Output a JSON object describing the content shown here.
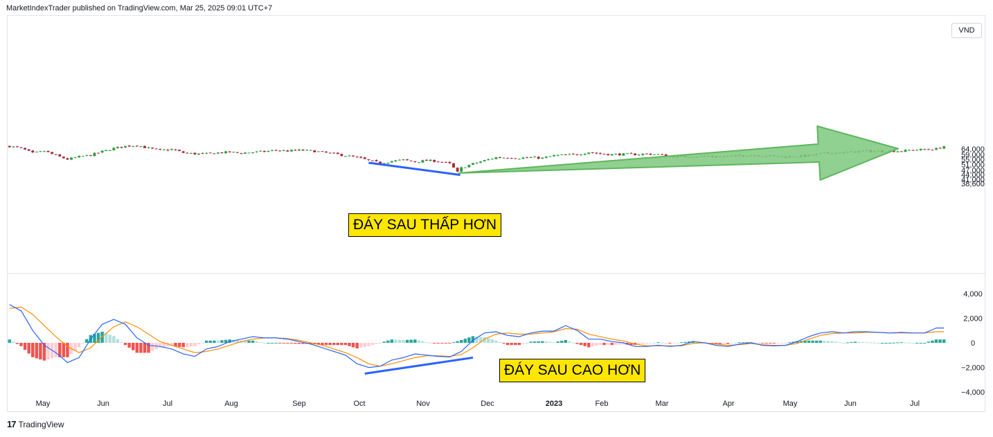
{
  "header": {
    "publisher_line": "MarketIndexTrader published on TradingView.com, Mar 25, 2025 09:01 UTC+7"
  },
  "currency_badge": "VND",
  "footer": {
    "logo": "17",
    "brand": "TradingView"
  },
  "annotations": {
    "price_label": "ĐÁY SAU THẤP HƠN",
    "macd_label": "ĐÁY SAU CAO HƠN"
  },
  "colors": {
    "up": "#26a69a",
    "down": "#ef5350",
    "candle_up": "#2e9e3e",
    "candle_down": "#a52a3a",
    "macd_line": "#2962ff",
    "signal_line": "#ff8c00",
    "hist_up_strong": "#26a69a",
    "hist_up_weak": "#b2dfdb",
    "hist_down_strong": "#ef5350",
    "hist_down_weak": "#ffcdd2",
    "divergence_line": "#2962ff",
    "arrow_fill": "#7dc87d"
  },
  "chart_data": [
    {
      "type": "candlestick",
      "title": "",
      "y_ticks": [
        "38,600",
        "41,000",
        "44,000",
        "47,000",
        "51,000",
        "55,000",
        "59,000",
        "64,000"
      ],
      "ylim": [
        37000,
        70000
      ],
      "y_scale": "log",
      "x_ticks": [
        "May",
        "Jun",
        "Jul",
        "Aug",
        "Sep",
        "Oct",
        "Nov",
        "Dec",
        "2023",
        "Feb",
        "Mar",
        "Apr",
        "May",
        "Jun",
        "Jul"
      ],
      "close_path": [
        [
          0,
          66500
        ],
        [
          3,
          64500
        ],
        [
          6,
          60000
        ],
        [
          9,
          62000
        ],
        [
          12,
          58000
        ],
        [
          15,
          55000
        ],
        [
          18,
          57000
        ],
        [
          21,
          58500
        ],
        [
          24,
          61500
        ],
        [
          27,
          64500
        ],
        [
          30,
          66500
        ],
        [
          33,
          67500
        ],
        [
          36,
          64500
        ],
        [
          39,
          62500
        ],
        [
          42,
          63500
        ],
        [
          45,
          60500
        ],
        [
          48,
          59500
        ],
        [
          51,
          59500
        ],
        [
          54,
          60500
        ],
        [
          57,
          61000
        ],
        [
          60,
          60200
        ],
        [
          63,
          61000
        ],
        [
          66,
          61500
        ],
        [
          69,
          62800
        ],
        [
          72,
          62000
        ],
        [
          75,
          62800
        ],
        [
          78,
          62200
        ],
        [
          81,
          61000
        ],
        [
          84,
          59500
        ],
        [
          87,
          58000
        ],
        [
          90,
          56500
        ],
        [
          93,
          54000
        ],
        [
          96,
          52000
        ],
        [
          99,
          53500
        ],
        [
          102,
          54500
        ],
        [
          105,
          53000
        ],
        [
          108,
          54000
        ],
        [
          111,
          53500
        ],
        [
          114,
          51500
        ],
        [
          116,
          45500
        ],
        [
          117,
          48500
        ],
        [
          120,
          51500
        ],
        [
          123,
          54000
        ],
        [
          126,
          56500
        ],
        [
          129,
          56500
        ],
        [
          132,
          56000
        ],
        [
          135,
          56500
        ],
        [
          138,
          56000
        ],
        [
          141,
          58000
        ],
        [
          144,
          58500
        ],
        [
          147,
          59000
        ],
        [
          150,
          61000
        ],
        [
          153,
          59500
        ],
        [
          156,
          59000
        ],
        [
          159,
          59200
        ],
        [
          162,
          59000
        ],
        [
          165,
          59500
        ],
        [
          168,
          59000
        ],
        [
          171,
          57500
        ],
        [
          174,
          57000
        ],
        [
          177,
          57500
        ],
        [
          180,
          57500
        ],
        [
          183,
          57000
        ],
        [
          186,
          57300
        ],
        [
          189,
          58000
        ],
        [
          192,
          58500
        ],
        [
          195,
          58000
        ],
        [
          198,
          57500
        ],
        [
          201,
          57000
        ],
        [
          204,
          57500
        ],
        [
          207,
          58000
        ],
        [
          210,
          59500
        ],
        [
          213,
          60500
        ],
        [
          216,
          60500
        ],
        [
          219,
          61500
        ],
        [
          222,
          62000
        ],
        [
          225,
          61800
        ],
        [
          228,
          62000
        ],
        [
          231,
          62000
        ],
        [
          234,
          63000
        ],
        [
          237,
          63500
        ],
        [
          240,
          64000
        ],
        [
          242,
          66500
        ]
      ],
      "series": [
        {
          "name": "",
          "type": "arrow",
          "from": [
            116,
            45000
          ],
          "to": [
            228,
            64200
          ]
        },
        {
          "name": "",
          "type": "trendline",
          "from": [
            93,
            52300
          ],
          "to": [
            116,
            43800
          ]
        }
      ]
    },
    {
      "type": "macd",
      "title": "",
      "y_ticks": [
        "4,000",
        "2,000",
        "0",
        "−2,000",
        "−4,000"
      ],
      "ylim": [
        -4000,
        4000
      ],
      "macd_path": [
        [
          0,
          3100
        ],
        [
          3,
          2600
        ],
        [
          6,
          1000
        ],
        [
          9,
          -200
        ],
        [
          12,
          -800
        ],
        [
          15,
          -1600
        ],
        [
          18,
          -1200
        ],
        [
          21,
          300
        ],
        [
          24,
          1500
        ],
        [
          27,
          1900
        ],
        [
          30,
          1500
        ],
        [
          33,
          400
        ],
        [
          36,
          -200
        ],
        [
          39,
          -300
        ],
        [
          42,
          -500
        ],
        [
          45,
          -900
        ],
        [
          48,
          -1100
        ],
        [
          51,
          -500
        ],
        [
          54,
          -300
        ],
        [
          57,
          100
        ],
        [
          60,
          300
        ],
        [
          63,
          500
        ],
        [
          66,
          400
        ],
        [
          69,
          400
        ],
        [
          72,
          300
        ],
        [
          75,
          100
        ],
        [
          78,
          -100
        ],
        [
          81,
          -400
        ],
        [
          84,
          -700
        ],
        [
          87,
          -1000
        ],
        [
          90,
          -1700
        ],
        [
          93,
          -2000
        ],
        [
          96,
          -1900
        ],
        [
          99,
          -1400
        ],
        [
          102,
          -1200
        ],
        [
          105,
          -900
        ],
        [
          108,
          -1000
        ],
        [
          111,
          -1100
        ],
        [
          114,
          -1150
        ],
        [
          117,
          -700
        ],
        [
          120,
          200
        ],
        [
          123,
          800
        ],
        [
          126,
          900
        ],
        [
          129,
          600
        ],
        [
          132,
          500
        ],
        [
          135,
          800
        ],
        [
          138,
          950
        ],
        [
          141,
          950
        ],
        [
          144,
          1400
        ],
        [
          147,
          1000
        ],
        [
          150,
          300
        ],
        [
          153,
          300
        ],
        [
          156,
          100
        ],
        [
          159,
          0
        ],
        [
          162,
          -300
        ],
        [
          165,
          -300
        ],
        [
          168,
          -200
        ],
        [
          171,
          -300
        ],
        [
          174,
          -200
        ],
        [
          177,
          100
        ],
        [
          180,
          0
        ],
        [
          183,
          -200
        ],
        [
          186,
          -300
        ],
        [
          189,
          -100
        ],
        [
          192,
          0
        ],
        [
          195,
          -200
        ],
        [
          198,
          -250
        ],
        [
          201,
          -200
        ],
        [
          204,
          100
        ],
        [
          207,
          500
        ],
        [
          210,
          800
        ],
        [
          213,
          900
        ],
        [
          216,
          800
        ],
        [
          219,
          900
        ],
        [
          222,
          900
        ],
        [
          225,
          850
        ],
        [
          228,
          800
        ],
        [
          231,
          850
        ],
        [
          234,
          800
        ],
        [
          237,
          800
        ],
        [
          240,
          1200
        ]
      ],
      "signal_path": [
        [
          0,
          2800
        ],
        [
          3,
          2900
        ],
        [
          6,
          2300
        ],
        [
          9,
          1400
        ],
        [
          12,
          500
        ],
        [
          15,
          -300
        ],
        [
          18,
          -800
        ],
        [
          21,
          -400
        ],
        [
          24,
          500
        ],
        [
          27,
          1300
        ],
        [
          30,
          1700
        ],
        [
          33,
          1300
        ],
        [
          36,
          700
        ],
        [
          39,
          100
        ],
        [
          42,
          -200
        ],
        [
          45,
          -500
        ],
        [
          48,
          -800
        ],
        [
          51,
          -700
        ],
        [
          54,
          -500
        ],
        [
          57,
          -200
        ],
        [
          60,
          100
        ],
        [
          63,
          300
        ],
        [
          66,
          400
        ],
        [
          69,
          400
        ],
        [
          72,
          350
        ],
        [
          75,
          200
        ],
        [
          78,
          0
        ],
        [
          81,
          -200
        ],
        [
          84,
          -500
        ],
        [
          87,
          -800
        ],
        [
          90,
          -1200
        ],
        [
          93,
          -1700
        ],
        [
          96,
          -1900
        ],
        [
          99,
          -1700
        ],
        [
          102,
          -1450
        ],
        [
          105,
          -1200
        ],
        [
          108,
          -1050
        ],
        [
          111,
          -1050
        ],
        [
          114,
          -1100
        ],
        [
          117,
          -950
        ],
        [
          120,
          -400
        ],
        [
          123,
          300
        ],
        [
          126,
          700
        ],
        [
          129,
          800
        ],
        [
          132,
          700
        ],
        [
          135,
          700
        ],
        [
          138,
          800
        ],
        [
          141,
          900
        ],
        [
          144,
          1150
        ],
        [
          147,
          1100
        ],
        [
          150,
          700
        ],
        [
          153,
          500
        ],
        [
          156,
          300
        ],
        [
          159,
          150
        ],
        [
          162,
          -100
        ],
        [
          165,
          -250
        ],
        [
          168,
          -250
        ],
        [
          171,
          -250
        ],
        [
          174,
          -250
        ],
        [
          177,
          -50
        ],
        [
          180,
          0
        ],
        [
          183,
          -100
        ],
        [
          186,
          -200
        ],
        [
          189,
          -150
        ],
        [
          192,
          -50
        ],
        [
          195,
          -150
        ],
        [
          198,
          -200
        ],
        [
          201,
          -200
        ],
        [
          204,
          -50
        ],
        [
          207,
          300
        ],
        [
          210,
          600
        ],
        [
          213,
          750
        ],
        [
          216,
          800
        ],
        [
          219,
          800
        ],
        [
          222,
          850
        ],
        [
          225,
          850
        ],
        [
          228,
          800
        ],
        [
          231,
          800
        ],
        [
          234,
          800
        ],
        [
          237,
          800
        ],
        [
          240,
          900
        ]
      ],
      "series": [
        {
          "name": "",
          "type": "trendline",
          "from": [
            92,
            -2500
          ],
          "to": [
            120,
            -1200
          ]
        }
      ]
    }
  ]
}
